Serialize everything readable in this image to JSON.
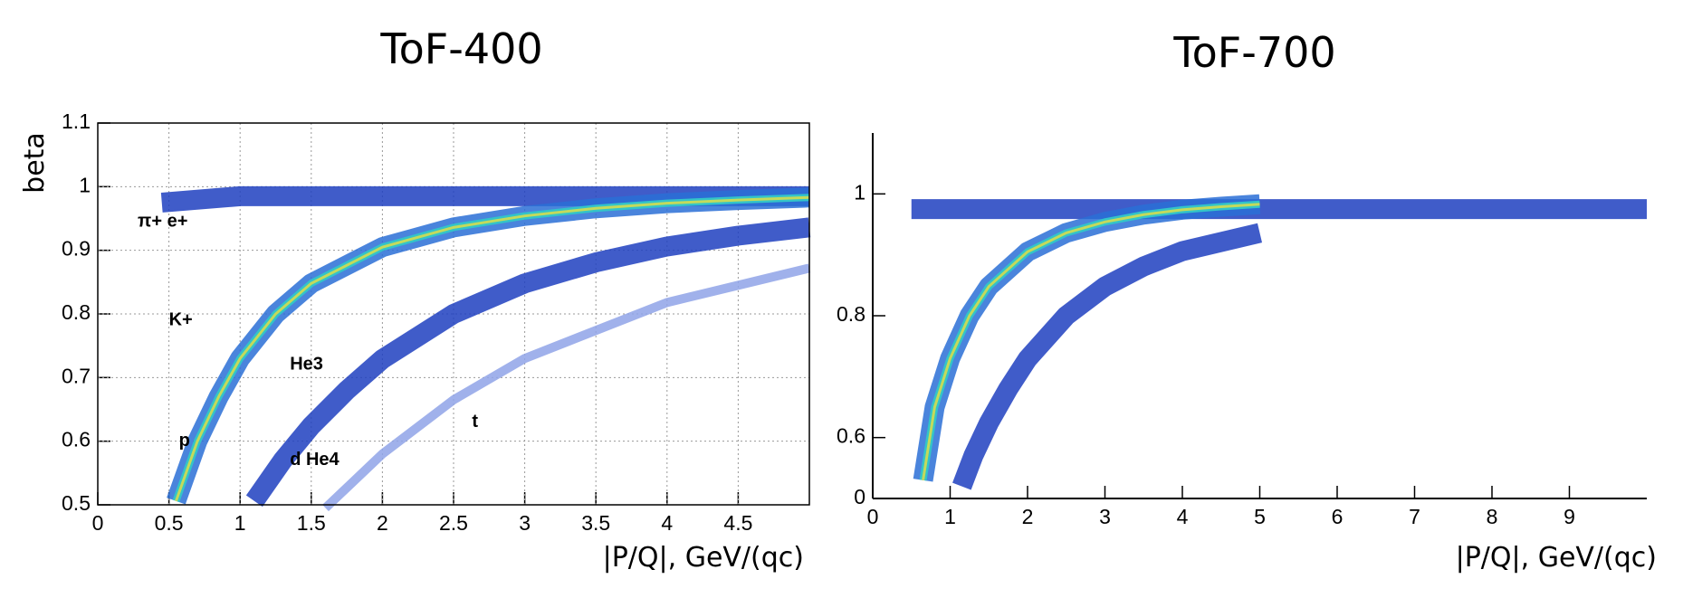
{
  "chart_data": [
    {
      "type": "density",
      "title": "ToF-400",
      "x_label": "|P/Q|, GeV/(qc)",
      "y_label": "beta",
      "xlim": [
        0,
        5
      ],
      "ylim": [
        0.5,
        1.1
      ],
      "xticks": [
        0,
        0.5,
        1,
        1.5,
        2,
        2.5,
        3,
        3.5,
        4,
        4.5
      ],
      "yticks": [
        0.5,
        0.6,
        0.7,
        0.8,
        0.9,
        1,
        1.1
      ],
      "grid": true,
      "annotations": [
        "π+ e+",
        "K+",
        "He3",
        "p",
        "d He4",
        "t"
      ],
      "series": [
        {
          "color": "#1f3fbf",
          "x": [
            0.45,
            1,
            2,
            3,
            4,
            5
          ],
          "values": [
            0.975,
            0.985,
            0.985,
            0.985,
            0.985,
            0.985
          ]
        },
        {
          "color": "#2a6fd6",
          "x": [
            0.55,
            0.7,
            0.85,
            1,
            1.25,
            1.5,
            2,
            2.5,
            3,
            3.5,
            4,
            4.5,
            5
          ],
          "values": [
            0.506,
            0.6,
            0.67,
            0.73,
            0.8,
            0.848,
            0.905,
            0.936,
            0.954,
            0.966,
            0.974,
            0.979,
            0.983
          ]
        },
        {
          "color": "#1f3fbf",
          "x": [
            1.1,
            1.3,
            1.5,
            1.75,
            2,
            2.5,
            3,
            3.5,
            4,
            4.5,
            5
          ],
          "values": [
            0.506,
            0.57,
            0.624,
            0.68,
            0.729,
            0.8,
            0.848,
            0.881,
            0.906,
            0.923,
            0.936
          ]
        },
        {
          "color": "#8fa3e8",
          "x": [
            1.6,
            2,
            2.5,
            3,
            4,
            5
          ],
          "values": [
            0.495,
            0.58,
            0.665,
            0.73,
            0.818,
            0.872
          ]
        }
      ]
    },
    {
      "type": "density",
      "title": "ToF-700",
      "x_label": "|P/Q|, GeV/(qc)",
      "xlim": [
        0,
        10
      ],
      "ylim": [
        0.5,
        1.1
      ],
      "xticks": [
        0,
        1,
        2,
        3,
        4,
        5,
        6,
        7,
        8,
        9
      ],
      "yticks": [
        {
          "value": 0.5,
          "label": "0"
        },
        0.6,
        0.8,
        1
      ],
      "grid": false,
      "series": [
        {
          "color": "#1f3fbf",
          "x": [
            0.5,
            1,
            2,
            4,
            6,
            8,
            10
          ],
          "values": [
            0.975,
            0.975,
            0.975,
            0.975,
            0.975,
            0.975,
            0.975
          ]
        },
        {
          "color": "#2a6fd6",
          "x": [
            0.65,
            0.8,
            1,
            1.25,
            1.5,
            2,
            2.5,
            3,
            3.5,
            4,
            4.5,
            5
          ],
          "values": [
            0.53,
            0.65,
            0.73,
            0.8,
            0.848,
            0.905,
            0.936,
            0.954,
            0.966,
            0.974,
            0.979,
            0.983
          ]
        },
        {
          "color": "#1f3fbf",
          "x": [
            1.15,
            1.3,
            1.5,
            1.75,
            2,
            2.5,
            3,
            3.5,
            4,
            5
          ],
          "values": [
            0.52,
            0.57,
            0.624,
            0.68,
            0.729,
            0.8,
            0.848,
            0.881,
            0.906,
            0.936
          ]
        }
      ]
    }
  ]
}
